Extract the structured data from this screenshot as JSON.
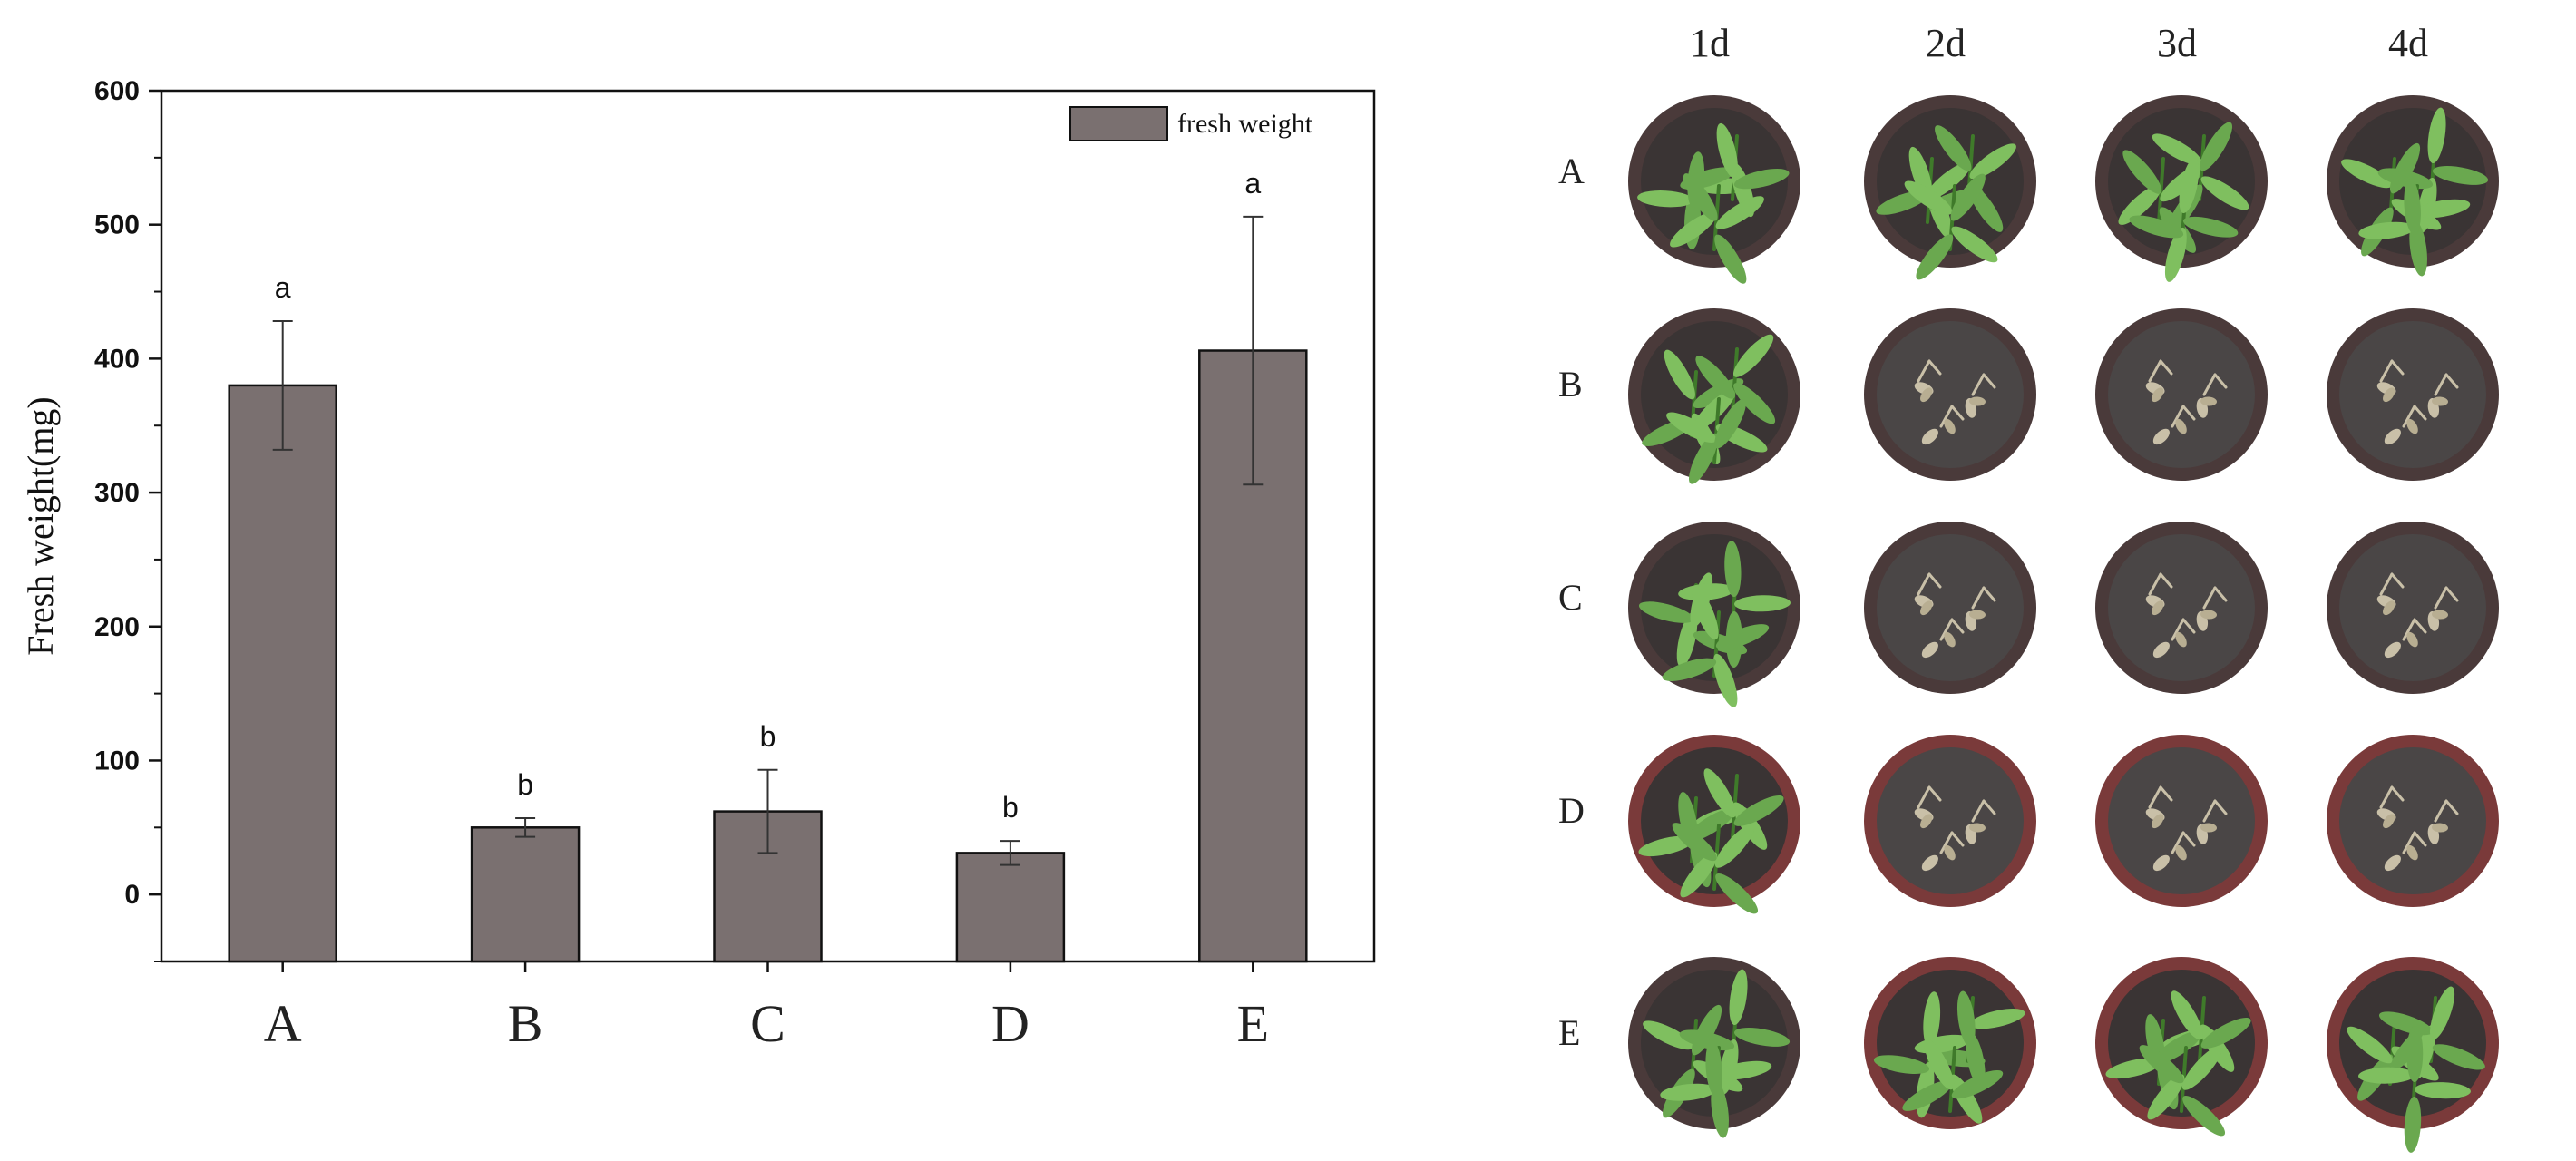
{
  "chart_data": {
    "type": "bar",
    "categories": [
      "A",
      "B",
      "C",
      "D",
      "E"
    ],
    "values": [
      380,
      50,
      62,
      31,
      406
    ],
    "errors": [
      48,
      7,
      31,
      9,
      100
    ],
    "significance": [
      "a",
      "b",
      "b",
      "b",
      "a"
    ],
    "ylabel": "Fresh weight(mg)",
    "ylim": [
      -50,
      600
    ],
    "yticks": [
      0,
      100,
      200,
      300,
      400,
      500,
      600
    ],
    "legend": {
      "label": "fresh weight",
      "position": "top-right"
    },
    "bar_color": "#7a7070",
    "grid": false
  },
  "photo_grid": {
    "columns": [
      "1d",
      "2d",
      "3d",
      "4d"
    ],
    "rows": [
      "A",
      "B",
      "C",
      "D",
      "E"
    ],
    "status": [
      [
        "healthy",
        "healthy",
        "healthy",
        "healthy"
      ],
      [
        "healthy",
        "wilted",
        "wilted",
        "wilted"
      ],
      [
        "healthy",
        "wilted",
        "wilted",
        "wilted"
      ],
      [
        "healthy",
        "wilted",
        "wilted",
        "wilted"
      ],
      [
        "healthy",
        "healthy",
        "healthy",
        "healthy"
      ]
    ],
    "colors": {
      "leaf": "#6aa84f",
      "leaf_dark": "#3f7a2a",
      "soil": "#3a3434",
      "pot_rim": "#4a3a3a",
      "pot_red_rim": "#7a3a3a",
      "dead": "#c9c0a8"
    }
  }
}
